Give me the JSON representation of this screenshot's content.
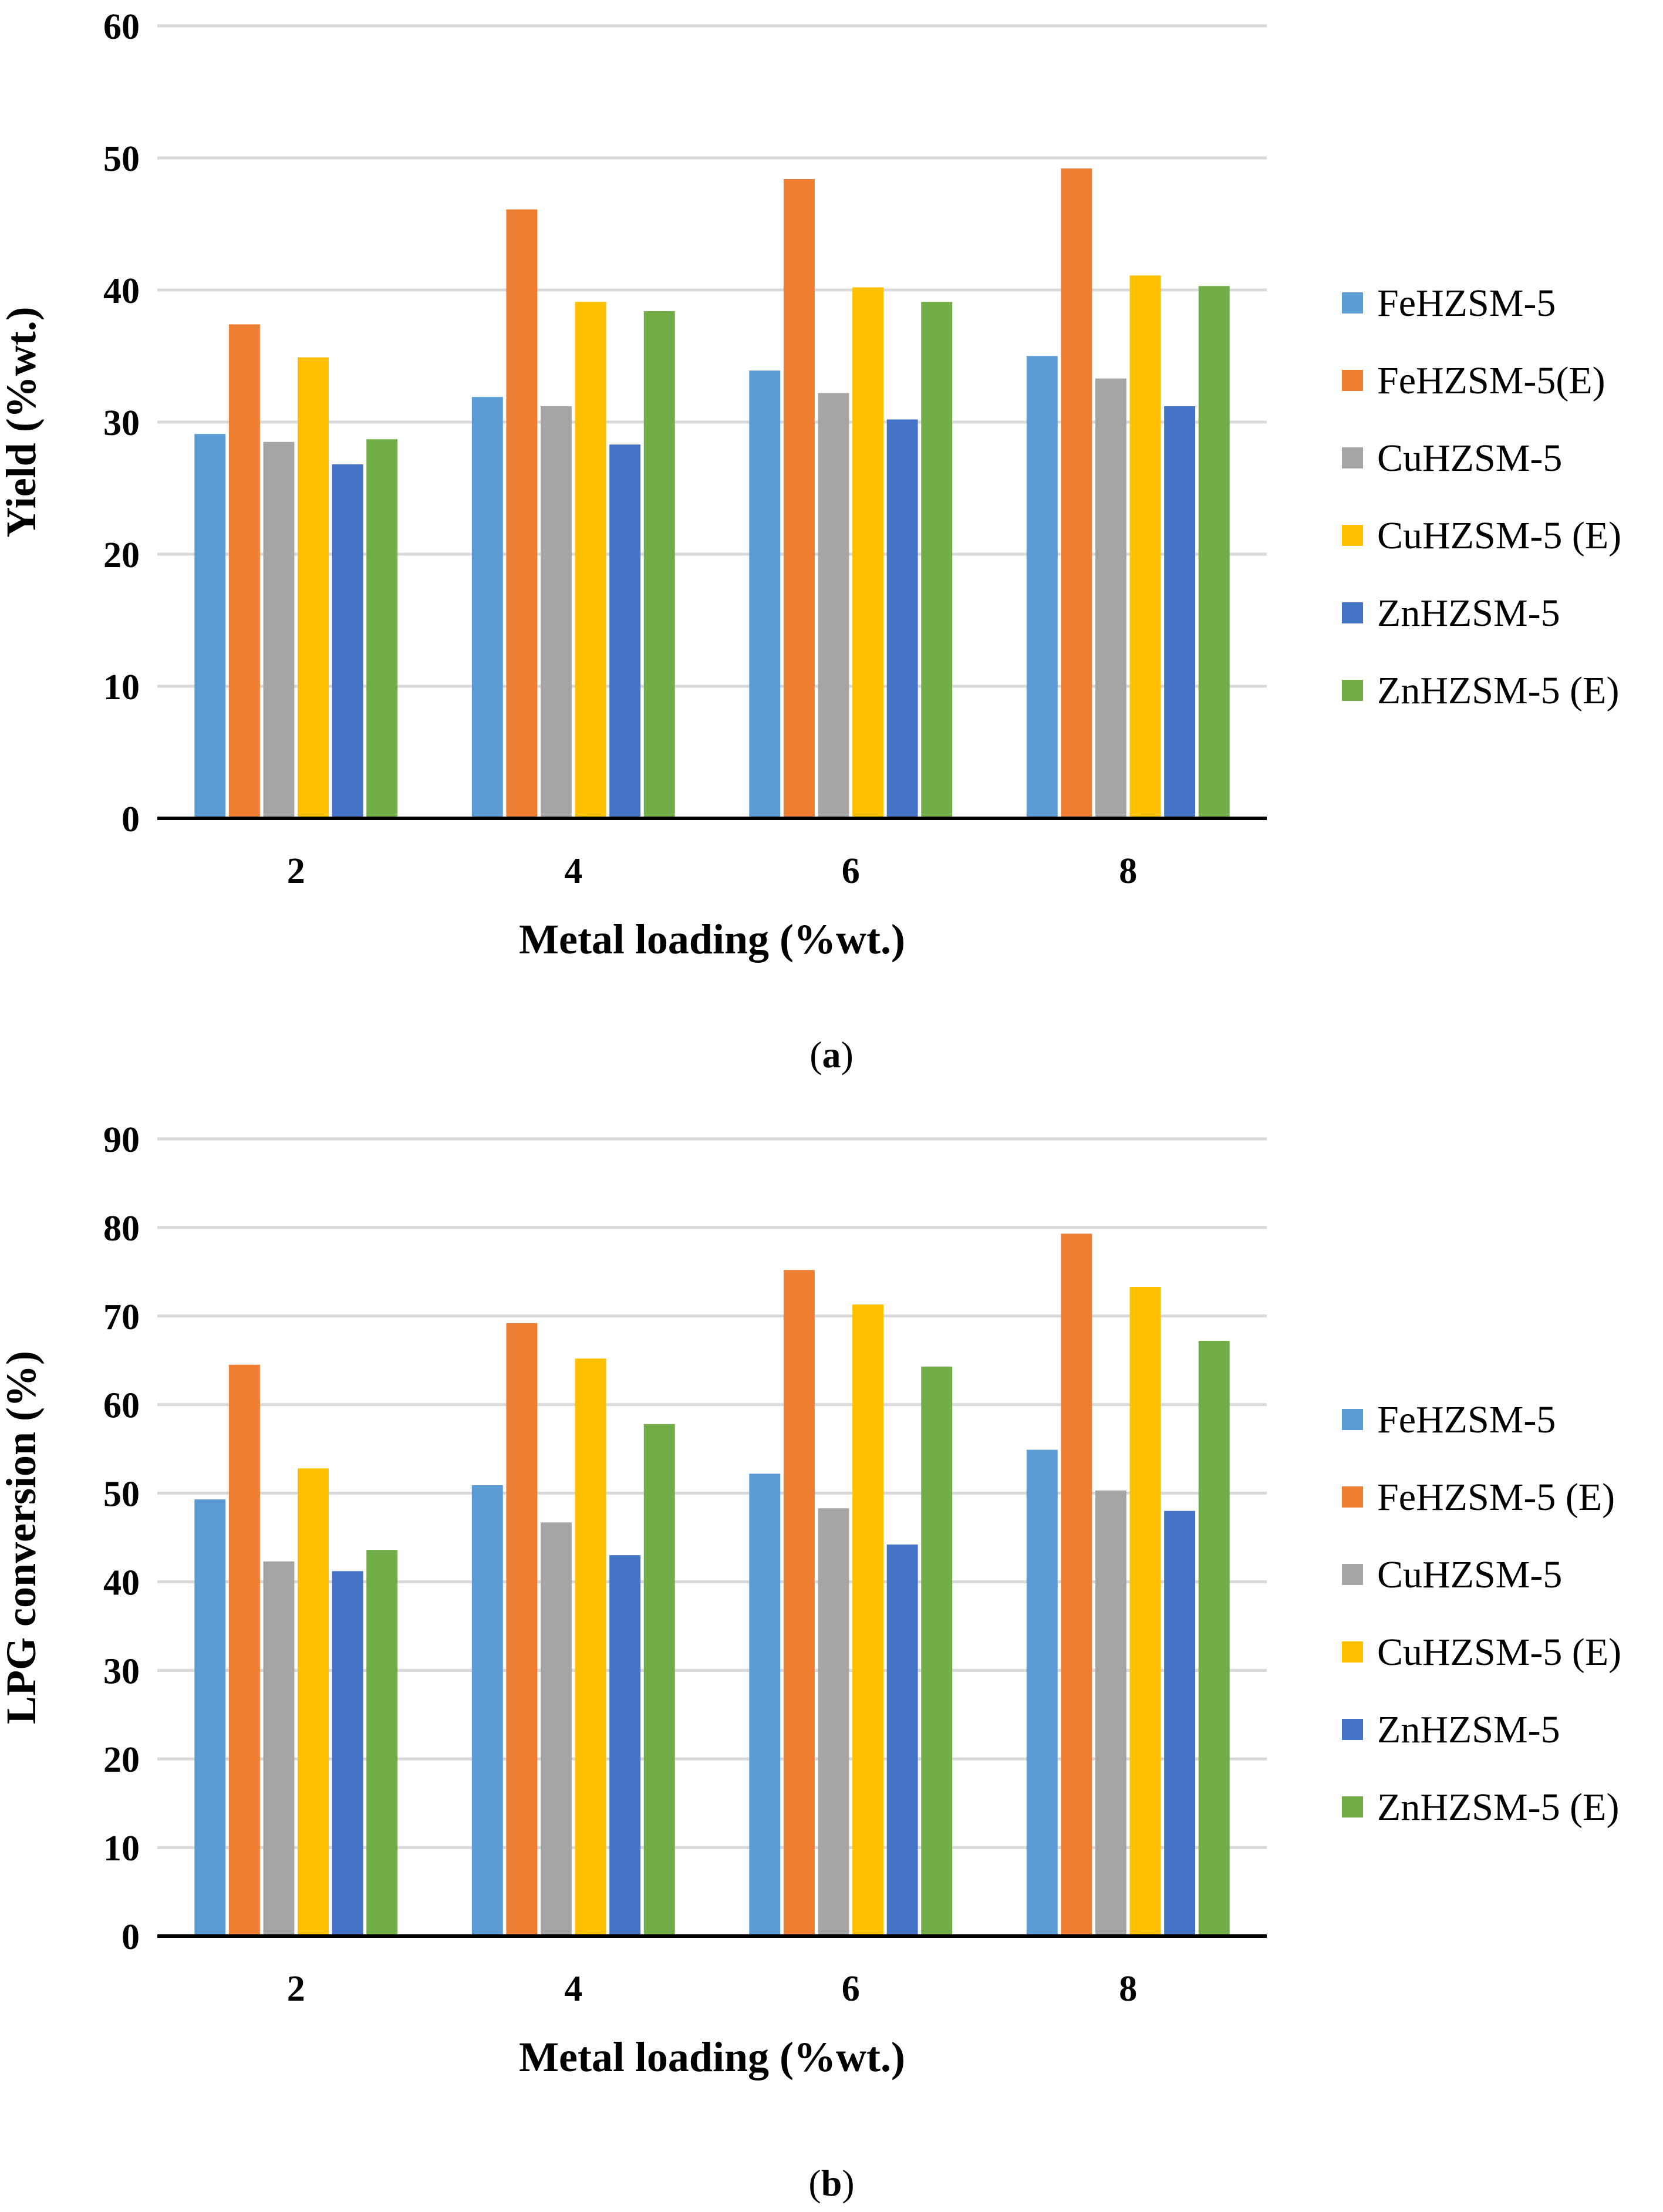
{
  "chart_data": [
    {
      "type": "bar",
      "panel_label": "a",
      "categories": [
        "2",
        "4",
        "6",
        "8"
      ],
      "xlabel": "Metal loading (%wt.)",
      "ylabel": "Yield (%wt.)",
      "ylim": [
        0,
        60
      ],
      "yticks": [
        0,
        10,
        20,
        30,
        40,
        50,
        60
      ],
      "grid": true,
      "legend_position": "right",
      "series": [
        {
          "name": "FeHZSM-5",
          "color": "#5B9BD5",
          "values": [
            29.1,
            31.9,
            33.9,
            35.0
          ]
        },
        {
          "name": "FeHZSM-5(E)",
          "color": "#ED7D31",
          "values": [
            37.4,
            46.1,
            48.4,
            49.2
          ]
        },
        {
          "name": "CuHZSM-5",
          "color": "#A5A5A5",
          "values": [
            28.5,
            31.2,
            32.2,
            33.3
          ]
        },
        {
          "name": "CuHZSM-5 (E)",
          "color": "#FFC000",
          "values": [
            34.9,
            39.1,
            40.2,
            41.1
          ]
        },
        {
          "name": "ZnHZSM-5",
          "color": "#4472C4",
          "values": [
            26.8,
            28.3,
            30.2,
            31.2
          ]
        },
        {
          "name": "ZnHZSM-5 (E)",
          "color": "#70AD47",
          "values": [
            28.7,
            38.4,
            39.1,
            40.3
          ]
        }
      ]
    },
    {
      "type": "bar",
      "panel_label": "b",
      "categories": [
        "2",
        "4",
        "6",
        "8"
      ],
      "xlabel": "Metal loading (%wt.)",
      "ylabel": "LPG conversion (%)",
      "ylim": [
        0,
        90
      ],
      "yticks": [
        0,
        10,
        20,
        30,
        40,
        50,
        60,
        70,
        80,
        90
      ],
      "grid": true,
      "legend_position": "right",
      "series": [
        {
          "name": "FeHZSM-5",
          "color": "#5B9BD5",
          "values": [
            49.3,
            50.9,
            52.2,
            54.9
          ]
        },
        {
          "name": "FeHZSM-5 (E)",
          "color": "#ED7D31",
          "values": [
            64.5,
            69.2,
            75.2,
            79.3
          ]
        },
        {
          "name": "CuHZSM-5",
          "color": "#A5A5A5",
          "values": [
            42.3,
            46.7,
            48.3,
            50.3
          ]
        },
        {
          "name": "CuHZSM-5 (E)",
          "color": "#FFC000",
          "values": [
            52.8,
            65.2,
            71.3,
            73.3
          ]
        },
        {
          "name": "ZnHZSM-5",
          "color": "#4472C4",
          "values": [
            41.2,
            43.0,
            44.2,
            48.0
          ]
        },
        {
          "name": "ZnHZSM-5 (E)",
          "color": "#70AD47",
          "values": [
            43.6,
            57.8,
            64.3,
            67.2
          ]
        }
      ]
    }
  ]
}
